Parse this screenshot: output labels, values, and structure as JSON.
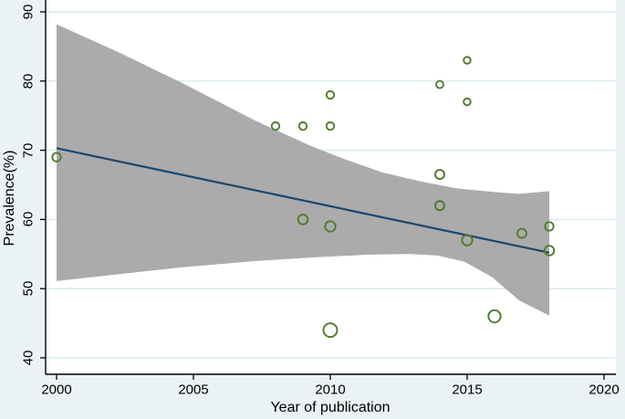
{
  "chart_data": {
    "type": "scatter",
    "title": "",
    "xlabel": "Year of publication",
    "ylabel": "Prevalence(%)",
    "x_ticks": [
      2000,
      2005,
      2010,
      2015,
      2020
    ],
    "y_ticks": [
      40,
      50,
      60,
      70,
      80,
      90
    ],
    "xlim": [
      1999.6,
      2020.4
    ],
    "ylim": [
      37.6,
      91.7
    ],
    "grid": "horizontal-only",
    "legend": "none",
    "colors": {
      "outer_background": "#eaf2f3",
      "plot_background": "#ffffff",
      "gridline": "#dcebee",
      "confidence_band": "#ababab",
      "regression_line": "#1a476f",
      "marker_stroke": "#4f7b29",
      "axis": "#000000"
    },
    "points": [
      {
        "year": 2000,
        "prevalence": 69,
        "r": 4.7
      },
      {
        "year": 2008,
        "prevalence": 73.5,
        "r": 4.2
      },
      {
        "year": 2009,
        "prevalence": 73.5,
        "r": 4.2
      },
      {
        "year": 2009,
        "prevalence": 60,
        "r": 5.3
      },
      {
        "year": 2010,
        "prevalence": 78,
        "r": 4.2
      },
      {
        "year": 2010,
        "prevalence": 73.5,
        "r": 4.2
      },
      {
        "year": 2010,
        "prevalence": 59,
        "r": 5.7
      },
      {
        "year": 2010,
        "prevalence": 44,
        "r": 7.5
      },
      {
        "year": 2014,
        "prevalence": 79.5,
        "r": 4.0
      },
      {
        "year": 2014,
        "prevalence": 66.5,
        "r": 5.0
      },
      {
        "year": 2014,
        "prevalence": 62,
        "r": 5.0
      },
      {
        "year": 2015,
        "prevalence": 83,
        "r": 3.8
      },
      {
        "year": 2015,
        "prevalence": 77,
        "r": 3.8
      },
      {
        "year": 2015,
        "prevalence": 57,
        "r": 5.7
      },
      {
        "year": 2016,
        "prevalence": 46,
        "r": 6.7
      },
      {
        "year": 2017,
        "prevalence": 58,
        "r": 5.0
      },
      {
        "year": 2018,
        "prevalence": 59,
        "r": 4.7
      },
      {
        "year": 2018,
        "prevalence": 55.5,
        "r": 5.3
      }
    ],
    "regression_line": {
      "x": [
        2000,
        2018
      ],
      "y": [
        70.3,
        55.2
      ]
    },
    "confidence_band": {
      "upper": [
        [
          2000,
          88.2
        ],
        [
          2002.3,
          84.1
        ],
        [
          2004.6,
          79.7
        ],
        [
          2007.3,
          74.2
        ],
        [
          2009.3,
          70.6
        ],
        [
          2010.6,
          68.6
        ],
        [
          2011.9,
          66.8
        ],
        [
          2013.3,
          65.5
        ],
        [
          2014.6,
          64.5
        ],
        [
          2015.9,
          64.0
        ],
        [
          2016.9,
          63.7
        ],
        [
          2018,
          64.1
        ]
      ],
      "lower": [
        [
          2000,
          51.1
        ],
        [
          2002.3,
          52.1
        ],
        [
          2004.6,
          53.1
        ],
        [
          2007.3,
          54.0
        ],
        [
          2009.3,
          54.5
        ],
        [
          2011.3,
          54.9
        ],
        [
          2012.9,
          55.0
        ],
        [
          2013.9,
          54.8
        ],
        [
          2014.9,
          53.9
        ],
        [
          2015.9,
          51.7
        ],
        [
          2016.9,
          48.3
        ],
        [
          2018,
          46.1
        ]
      ]
    }
  }
}
